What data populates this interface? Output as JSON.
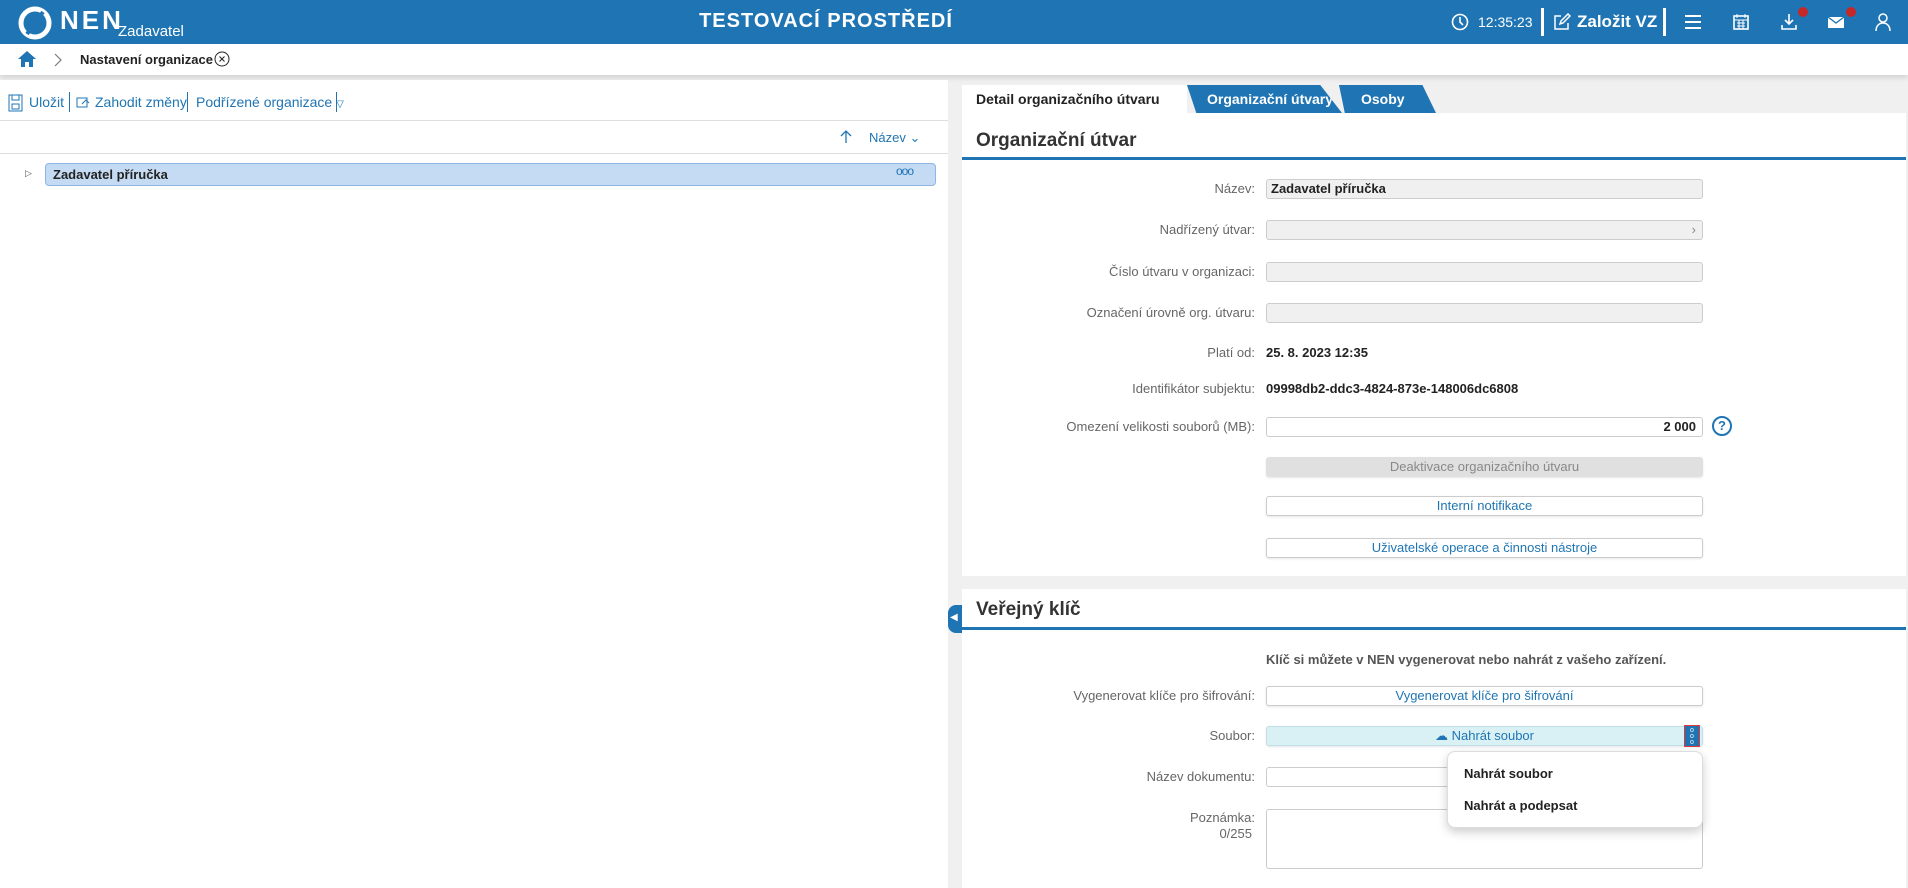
{
  "header": {
    "logo": "NEN",
    "role": "Zadavatel",
    "title": "TESTOVACÍ PROSTŘEDÍ",
    "time": "12:35:23",
    "create_label": "Založit VZ",
    "icons": [
      "clock-icon",
      "edit-icon",
      "menu-icon",
      "calendar-icon",
      "download-icon",
      "mail-icon",
      "user-icon"
    ],
    "brand_color": "#1f75b3",
    "badge_color": "#c62828"
  },
  "breadcrumb": {
    "current": "Nastavení organizace"
  },
  "left": {
    "toolbar": {
      "save": "Uložit",
      "discard": "Zahodit změny",
      "sub_orgs": "Podřízené organizace"
    },
    "sort_label": "Název",
    "tree": [
      {
        "label": "Zadavatel příručka",
        "selected": true
      }
    ]
  },
  "tabs": [
    "Detail organizačního útvaru",
    "Organizační útvary",
    "Osoby"
  ],
  "org": {
    "title": "Organizační útvar",
    "fields": {
      "name_label": "Název:",
      "name_value": "Zadavatel příručka",
      "parent_label": "Nadřízený útvar:",
      "number_label": "Číslo útvaru v organizaci:",
      "level_label": "Označení úrovně org. útvaru:",
      "valid_label": "Platí od:",
      "valid_value": "25. 8. 2023 12:35",
      "id_label": "Identifikátor subjektu:",
      "id_value": "09998db2-ddc3-4824-873e-148006dc6808",
      "limit_label": "Omezení velikosti souborů (MB):",
      "limit_value": "2 000"
    },
    "buttons": {
      "deactivate": "Deaktivace organizačního útvaru",
      "notifications": "Interní notifikace",
      "operations": "Uživatelské operace a činnosti nástroje"
    }
  },
  "key": {
    "title": "Veřejný klíč",
    "info": "Klíč si můžete v NEN vygenerovat nebo nahrát z vašeho zařízení.",
    "generate_label": "Vygenerovat klíče pro šifrování:",
    "generate_button": "Vygenerovat klíče pro šifrování",
    "file_label": "Soubor:",
    "upload_button": "Nahrát soubor",
    "docname_label": "Název dokumentu:",
    "note_label": "Poznámka:",
    "note_count": "0/255",
    "menu": [
      "Nahrát soubor",
      "Nahrát a podepsat"
    ]
  }
}
